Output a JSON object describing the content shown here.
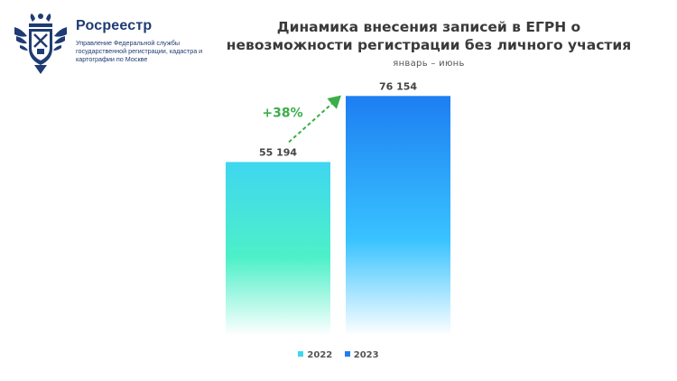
{
  "org": {
    "name": "Росреестр",
    "subtitle": "Управление Федеральной службы государственной регистрации, кадастра и картографии по Москве"
  },
  "colors": {
    "brand": "#1f3b73",
    "bar_2022_top": "#3fd6f0",
    "bar_2022_mid": "#4df0c8",
    "bar_2023_top": "#1d7ef2",
    "arrow": "#3aae4a"
  },
  "chart_data": {
    "type": "bar",
    "title": "Динамика внесения записей в ЕГРН о невозможности регистрации без личного участия",
    "subtitle": "январь – июнь",
    "categories": [
      "2022",
      "2023"
    ],
    "values": [
      55194,
      76154
    ],
    "value_labels": [
      "55 194",
      "76 154"
    ],
    "ylim": [
      0,
      90000
    ],
    "legend": [
      "2022",
      "2023"
    ],
    "annotation": "+38%"
  }
}
